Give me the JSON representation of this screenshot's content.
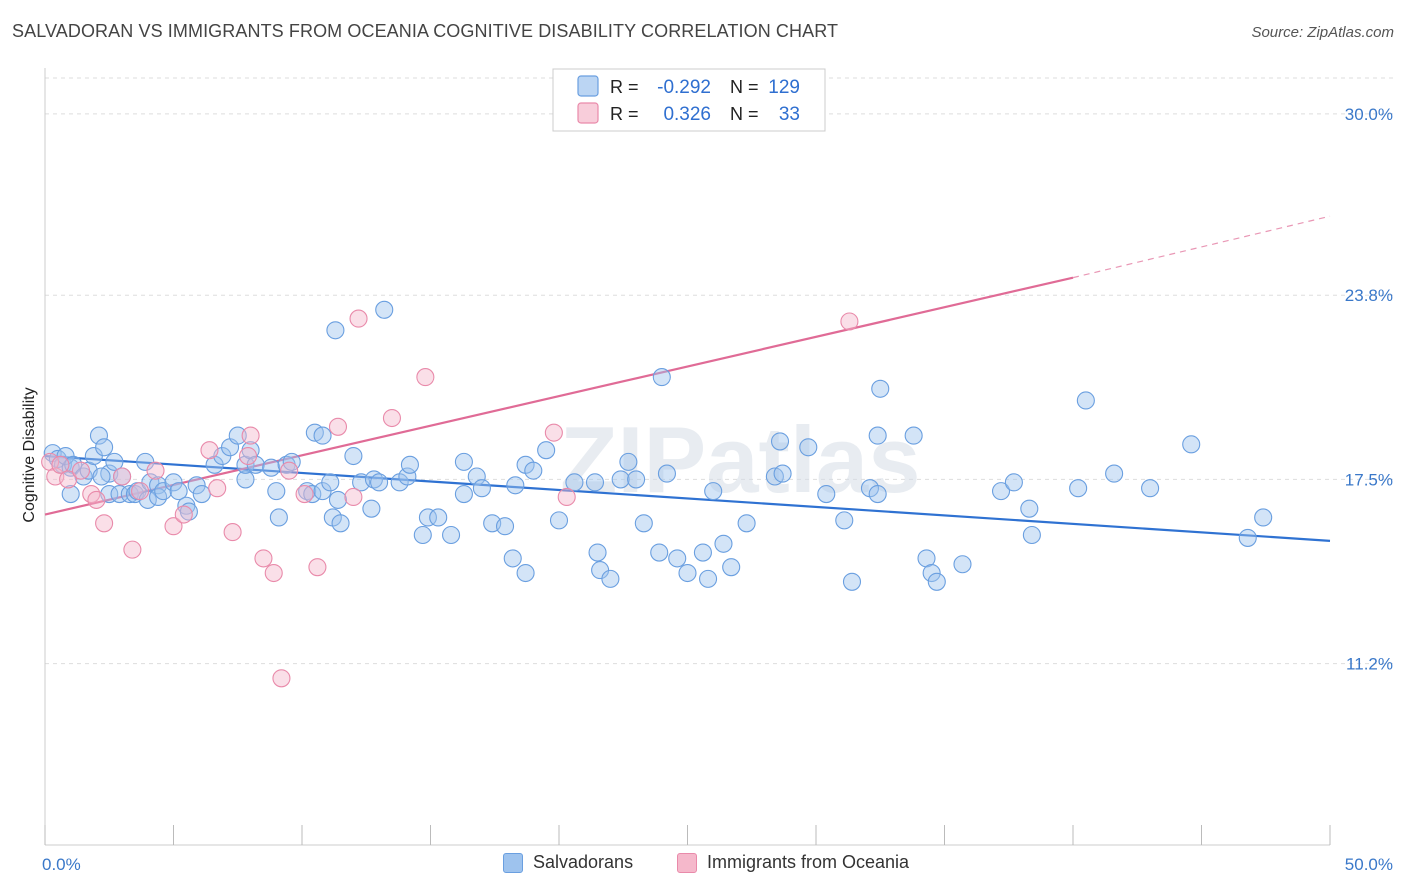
{
  "title": "SALVADORAN VS IMMIGRANTS FROM OCEANIA COGNITIVE DISABILITY CORRELATION CHART",
  "source": "Source: ZipAtlas.com",
  "watermark": "ZIPatlas",
  "colors": {
    "blue_fill": "#9ec3ee",
    "blue_stroke": "#6a9fe0",
    "blue_line": "#2f72d2",
    "pink_fill": "#f5b8cb",
    "pink_stroke": "#e98aaa",
    "pink_line": "#e06b96",
    "tick_text": "#3a78c9",
    "grid": "#dddddd"
  },
  "legend": {
    "rows": [
      {
        "r_label": "R =",
        "r_value": "-0.292",
        "n_label": "N =",
        "n_value": "129"
      },
      {
        "r_label": "R =",
        "r_value": "0.326",
        "n_label": "N =",
        "n_value": "33"
      }
    ]
  },
  "bottom_legend": {
    "items": [
      "Salvadorans",
      "Immigrants from Oceania"
    ]
  },
  "chart_data": {
    "type": "scatter",
    "title": "SALVADORAN VS IMMIGRANTS FROM OCEANIA COGNITIVE DISABILITY CORRELATION CHART",
    "xlabel": "",
    "ylabel": "Cognitive Disability",
    "xlim": [
      0,
      50
    ],
    "ylim": [
      5.0,
      31.5
    ],
    "x_tick_labels": [
      "0.0%",
      "50.0%"
    ],
    "y_ticks": [
      11.2,
      17.5,
      23.8,
      30.0
    ],
    "y_tick_labels": [
      "11.2%",
      "17.5%",
      "23.8%",
      "30.0%"
    ],
    "grid": true,
    "legend_position": "top-center",
    "series": [
      {
        "name": "Salvadorans",
        "r": -0.292,
        "n": 129,
        "trend": {
          "x": [
            0,
            50
          ],
          "y": [
            18.3,
            15.4
          ]
        },
        "points": [
          [
            0.3,
            18.4
          ],
          [
            0.5,
            18.2
          ],
          [
            0.7,
            18.0
          ],
          [
            1.0,
            17.9
          ],
          [
            0.8,
            18.3
          ],
          [
            1.1,
            18.0
          ],
          [
            1.5,
            17.6
          ],
          [
            1.7,
            17.8
          ],
          [
            1.0,
            17.0
          ],
          [
            1.9,
            18.3
          ],
          [
            2.1,
            19.0
          ],
          [
            2.3,
            18.6
          ],
          [
            2.5,
            17.7
          ],
          [
            2.2,
            17.6
          ],
          [
            2.7,
            18.1
          ],
          [
            2.5,
            17.0
          ],
          [
            2.9,
            17.0
          ],
          [
            3.0,
            17.6
          ],
          [
            3.3,
            17.0
          ],
          [
            3.5,
            17.0
          ],
          [
            3.6,
            17.1
          ],
          [
            3.9,
            18.1
          ],
          [
            4.1,
            17.4
          ],
          [
            4.4,
            17.3
          ],
          [
            4.0,
            16.8
          ],
          [
            4.4,
            16.9
          ],
          [
            4.6,
            17.1
          ],
          [
            5.0,
            17.4
          ],
          [
            5.2,
            17.1
          ],
          [
            5.5,
            16.6
          ],
          [
            5.9,
            17.3
          ],
          [
            6.1,
            17.0
          ],
          [
            5.6,
            16.4
          ],
          [
            6.6,
            18.0
          ],
          [
            6.9,
            18.3
          ],
          [
            7.2,
            18.6
          ],
          [
            7.5,
            19.0
          ],
          [
            7.8,
            17.5
          ],
          [
            7.8,
            18.0
          ],
          [
            8.0,
            18.5
          ],
          [
            8.2,
            18.0
          ],
          [
            8.8,
            17.9
          ],
          [
            9.0,
            17.1
          ],
          [
            9.1,
            16.2
          ],
          [
            9.4,
            18.0
          ],
          [
            9.6,
            18.1
          ],
          [
            10.2,
            17.1
          ],
          [
            10.4,
            17.0
          ],
          [
            10.8,
            17.1
          ],
          [
            10.5,
            19.1
          ],
          [
            10.8,
            19.0
          ],
          [
            11.2,
            16.2
          ],
          [
            11.5,
            16.0
          ],
          [
            11.4,
            16.8
          ],
          [
            11.1,
            17.4
          ],
          [
            12.3,
            17.4
          ],
          [
            12.0,
            18.3
          ],
          [
            12.7,
            16.5
          ],
          [
            12.8,
            17.5
          ],
          [
            13.0,
            17.4
          ],
          [
            13.8,
            17.4
          ],
          [
            14.1,
            17.6
          ],
          [
            14.2,
            18.0
          ],
          [
            14.7,
            15.6
          ],
          [
            14.9,
            16.2
          ],
          [
            15.3,
            16.2
          ],
          [
            15.8,
            15.6
          ],
          [
            16.3,
            17.0
          ],
          [
            16.3,
            18.1
          ],
          [
            16.8,
            17.6
          ],
          [
            17.0,
            17.2
          ],
          [
            17.4,
            16.0
          ],
          [
            17.9,
            15.9
          ],
          [
            18.3,
            17.3
          ],
          [
            18.7,
            18.0
          ],
          [
            19.0,
            17.8
          ],
          [
            19.5,
            18.5
          ],
          [
            18.2,
            14.8
          ],
          [
            18.7,
            14.3
          ],
          [
            20.0,
            16.1
          ],
          [
            20.6,
            17.4
          ],
          [
            21.4,
            17.4
          ],
          [
            21.5,
            15.0
          ],
          [
            21.6,
            14.4
          ],
          [
            22.0,
            14.1
          ],
          [
            22.4,
            17.5
          ],
          [
            22.7,
            18.1
          ],
          [
            23.0,
            17.5
          ],
          [
            23.3,
            16.0
          ],
          [
            23.9,
            15.0
          ],
          [
            24.6,
            14.8
          ],
          [
            24.0,
            21.0
          ],
          [
            24.2,
            17.7
          ],
          [
            25.0,
            14.3
          ],
          [
            25.6,
            15.0
          ],
          [
            25.8,
            14.1
          ],
          [
            26.0,
            17.1
          ],
          [
            26.4,
            15.3
          ],
          [
            26.7,
            14.5
          ],
          [
            27.3,
            16.0
          ],
          [
            28.4,
            17.6
          ],
          [
            28.7,
            17.7
          ],
          [
            28.6,
            18.8
          ],
          [
            29.7,
            18.6
          ],
          [
            30.4,
            17.0
          ],
          [
            31.1,
            16.1
          ],
          [
            31.4,
            14.0
          ],
          [
            32.1,
            17.2
          ],
          [
            32.4,
            17.0
          ],
          [
            32.4,
            19.0
          ],
          [
            32.5,
            20.6
          ],
          [
            33.8,
            19.0
          ],
          [
            34.3,
            14.8
          ],
          [
            34.5,
            14.3
          ],
          [
            34.7,
            14.0
          ],
          [
            35.7,
            14.6
          ],
          [
            37.2,
            17.1
          ],
          [
            37.7,
            17.4
          ],
          [
            38.3,
            16.5
          ],
          [
            38.4,
            15.6
          ],
          [
            40.2,
            17.2
          ],
          [
            40.5,
            20.2
          ],
          [
            41.6,
            17.7
          ],
          [
            43.0,
            17.2
          ],
          [
            44.6,
            18.7
          ],
          [
            46.8,
            15.5
          ],
          [
            47.4,
            16.2
          ],
          [
            13.2,
            23.3
          ],
          [
            11.3,
            22.6
          ]
        ]
      },
      {
        "name": "Immigrants from Oceania",
        "r": 0.326,
        "n": 33,
        "trend": {
          "x": [
            0,
            40
          ],
          "y": [
            16.3,
            24.4
          ]
        },
        "trend_extended": {
          "x": [
            40,
            50
          ],
          "y": [
            24.4,
            26.5
          ]
        },
        "points": [
          [
            0.2,
            18.1
          ],
          [
            0.4,
            17.6
          ],
          [
            0.6,
            18.0
          ],
          [
            0.9,
            17.5
          ],
          [
            1.4,
            17.8
          ],
          [
            1.8,
            17.0
          ],
          [
            2.0,
            16.8
          ],
          [
            2.3,
            16.0
          ],
          [
            3.0,
            17.6
          ],
          [
            3.4,
            15.1
          ],
          [
            3.7,
            17.1
          ],
          [
            4.3,
            17.8
          ],
          [
            5.0,
            15.9
          ],
          [
            5.4,
            16.3
          ],
          [
            6.4,
            18.5
          ],
          [
            6.7,
            17.2
          ],
          [
            7.3,
            15.7
          ],
          [
            7.9,
            18.3
          ],
          [
            8.0,
            19.0
          ],
          [
            8.5,
            14.8
          ],
          [
            8.9,
            14.3
          ],
          [
            9.5,
            17.8
          ],
          [
            10.1,
            17.0
          ],
          [
            10.6,
            14.5
          ],
          [
            11.4,
            19.3
          ],
          [
            12.0,
            16.9
          ],
          [
            9.2,
            10.7
          ],
          [
            12.2,
            23.0
          ],
          [
            14.8,
            21.0
          ],
          [
            13.5,
            19.6
          ],
          [
            19.8,
            19.1
          ],
          [
            20.3,
            16.9
          ],
          [
            31.3,
            22.9
          ]
        ]
      }
    ]
  }
}
